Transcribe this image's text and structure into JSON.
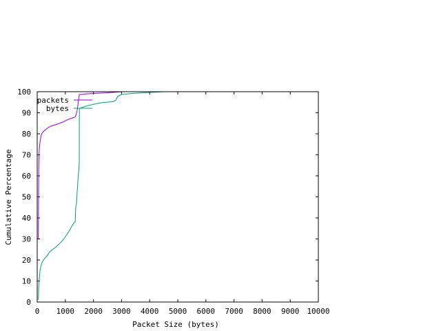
{
  "chart_data": {
    "type": "line",
    "xlabel": "Packet Size (bytes)",
    "ylabel": "Cumulative Percentage",
    "xlim": [
      0,
      10000
    ],
    "ylim": [
      0,
      100
    ],
    "x_ticks": [
      0,
      1000,
      2000,
      3000,
      4000,
      5000,
      6000,
      7000,
      8000,
      9000,
      10000
    ],
    "y_ticks": [
      0,
      10,
      20,
      30,
      40,
      50,
      60,
      70,
      80,
      90,
      100
    ],
    "grid": false,
    "legend_position": "top-left",
    "series": [
      {
        "name": "packets",
        "color": "#9400d3",
        "points": [
          [
            40,
            30
          ],
          [
            42,
            35
          ],
          [
            44,
            40
          ],
          [
            48,
            50
          ],
          [
            52,
            60
          ],
          [
            56,
            65
          ],
          [
            60,
            68
          ],
          [
            70,
            72
          ],
          [
            90,
            75
          ],
          [
            120,
            78
          ],
          [
            160,
            80
          ],
          [
            220,
            81
          ],
          [
            300,
            82
          ],
          [
            400,
            83
          ],
          [
            500,
            83.7
          ],
          [
            650,
            84.3
          ],
          [
            800,
            85
          ],
          [
            950,
            85.8
          ],
          [
            1100,
            86.8
          ],
          [
            1250,
            87.5
          ],
          [
            1350,
            88
          ],
          [
            1380,
            89
          ],
          [
            1400,
            90
          ],
          [
            1420,
            91
          ],
          [
            1440,
            93
          ],
          [
            1460,
            95
          ],
          [
            1480,
            97
          ],
          [
            1500,
            98.7
          ],
          [
            1800,
            99
          ],
          [
            2200,
            99.3
          ],
          [
            2600,
            99.6
          ],
          [
            3000,
            100
          ]
        ]
      },
      {
        "name": "bytes",
        "color": "#009e73",
        "points": [
          [
            40,
            1
          ],
          [
            45,
            3
          ],
          [
            50,
            6
          ],
          [
            60,
            9
          ],
          [
            80,
            12
          ],
          [
            100,
            15
          ],
          [
            130,
            17
          ],
          [
            180,
            19
          ],
          [
            250,
            20.5
          ],
          [
            350,
            22
          ],
          [
            450,
            24
          ],
          [
            550,
            25
          ],
          [
            650,
            26
          ],
          [
            750,
            27.2
          ],
          [
            850,
            28.5
          ],
          [
            950,
            30
          ],
          [
            1050,
            32
          ],
          [
            1150,
            34
          ],
          [
            1250,
            36.5
          ],
          [
            1300,
            37.5
          ],
          [
            1350,
            38
          ],
          [
            1370,
            45
          ],
          [
            1400,
            47
          ],
          [
            1420,
            52
          ],
          [
            1440,
            56
          ],
          [
            1460,
            60
          ],
          [
            1480,
            63
          ],
          [
            1495,
            66
          ],
          [
            1500,
            92
          ],
          [
            1600,
            92.5
          ],
          [
            1750,
            93.2
          ],
          [
            2000,
            94
          ],
          [
            2300,
            94.8
          ],
          [
            2700,
            95.3
          ],
          [
            2800,
            96
          ],
          [
            2850,
            97.5
          ],
          [
            2900,
            98
          ],
          [
            3000,
            98.7
          ],
          [
            3400,
            99.2
          ],
          [
            3800,
            99.5
          ],
          [
            4200,
            99.8
          ],
          [
            4500,
            100
          ]
        ]
      }
    ]
  }
}
